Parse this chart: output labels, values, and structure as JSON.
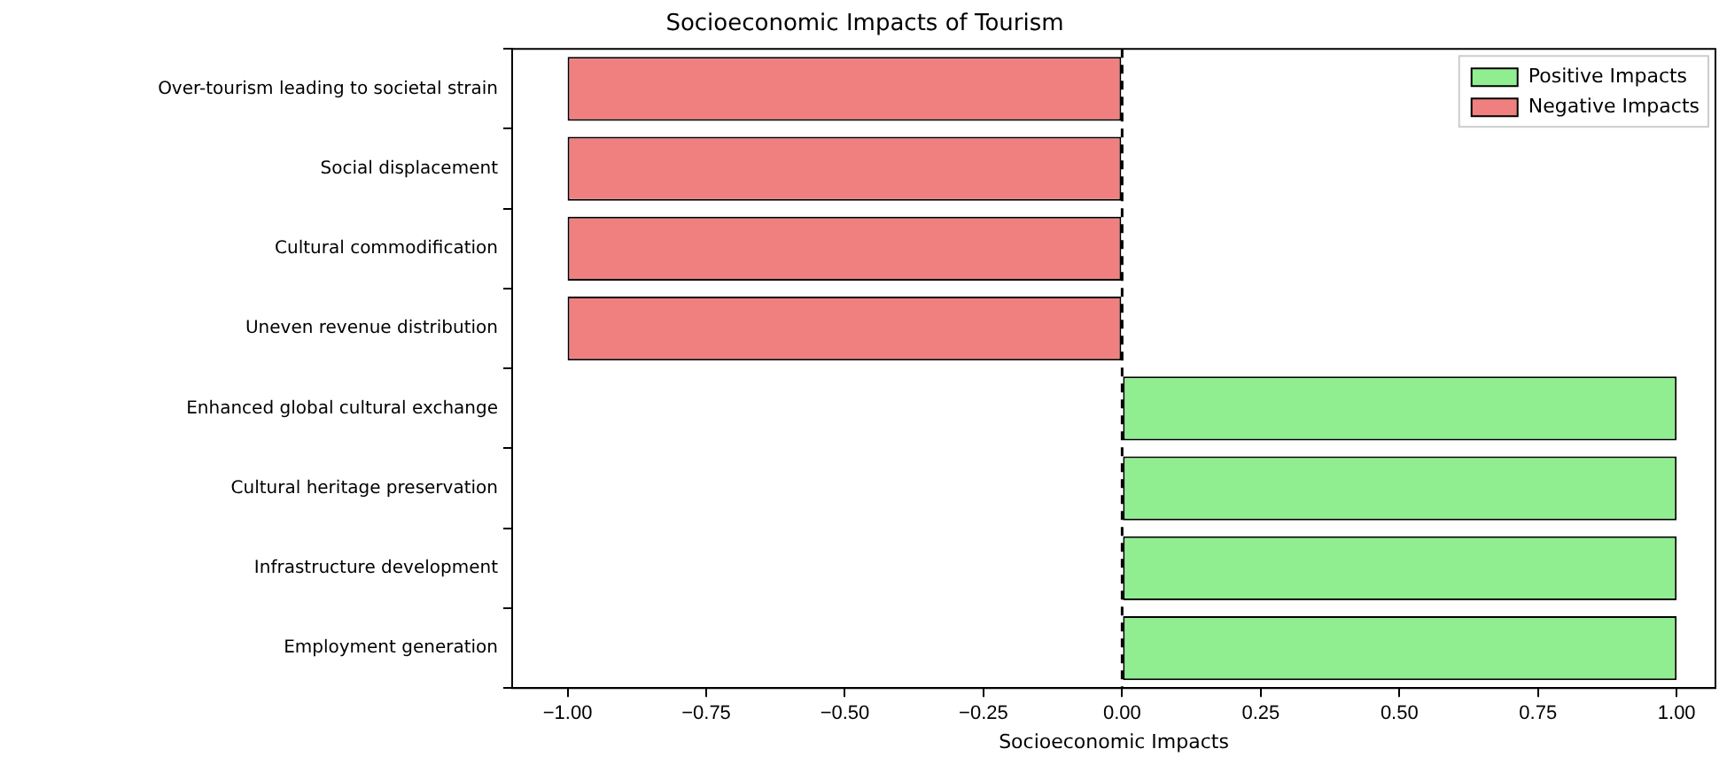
{
  "chart_data": {
    "type": "bar",
    "orientation": "horizontal",
    "title": "Socioeconomic Impacts of Tourism",
    "xlabel": "Socioeconomic Impacts",
    "categories": [
      "Over-tourism leading to societal strain",
      "Social displacement",
      "Cultural commodification",
      "Uneven revenue distribution",
      "Enhanced global cultural exchange",
      "Cultural heritage preservation",
      "Infrastructure development",
      "Employment generation"
    ],
    "series": [
      {
        "name": "Positive Impacts",
        "color": "#90ee90",
        "values": [
          null,
          null,
          null,
          null,
          1,
          1,
          1,
          1
        ]
      },
      {
        "name": "Negative Impacts",
        "color": "#f08080",
        "values": [
          -1,
          -1,
          -1,
          -1,
          null,
          null,
          null,
          null
        ]
      }
    ],
    "xlim": [
      -1.1,
      1.07
    ],
    "xticks": [
      {
        "value": -1,
        "label": "−1.00"
      },
      {
        "value": -0.75,
        "label": "−0.75"
      },
      {
        "value": -0.5,
        "label": "−0.50"
      },
      {
        "value": -0.25,
        "label": "−0.25"
      },
      {
        "value": 0,
        "label": "0.00"
      },
      {
        "value": 0.25,
        "label": "0.25"
      },
      {
        "value": 0.5,
        "label": "0.50"
      },
      {
        "value": 0.75,
        "label": "0.75"
      },
      {
        "value": 1,
        "label": "1.00"
      }
    ],
    "ref_lines": [
      {
        "axis": "x",
        "value": 0,
        "color": "#000000",
        "line_style": "dashed"
      }
    ],
    "grid": false,
    "legend": "top right"
  }
}
